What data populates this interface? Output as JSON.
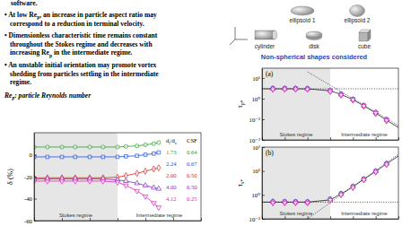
{
  "highlights": {
    "lead": "software.",
    "bullets": [
      [
        [
          "• At low Re",
          {
            "sub": "p"
          },
          ", an increase in particle aspect ratio may"
        ],
        [
          "correspond to a reduction in terminal velocity."
        ]
      ],
      [
        [
          "• Dimensionless characteristic time remains constant"
        ],
        [
          "throughout the Stokes regime and decreases with"
        ],
        [
          "increasing Re",
          {
            "sub": "p"
          },
          " in the intermediate regime."
        ]
      ],
      [
        [
          "• An unstable initial orientation may promote vortex"
        ],
        [
          "shedding from particles settling in the intermediate"
        ],
        [
          "regime."
        ]
      ]
    ],
    "note": [
      "Re",
      {
        "sub": "p"
      },
      ": particle Reynolds number"
    ]
  },
  "shapes": {
    "items": [
      "ellipsoid 1",
      "ellipsoid 2",
      "cylinder",
      "disk",
      "cube"
    ],
    "caption": "Non-spherical shapes considered"
  },
  "chart_data": [
    {
      "type": "line",
      "y_label": [
        "δ (%)"
      ],
      "log": "x",
      "xlim": [
        0.001,
        1000
      ],
      "xticks": [
        0.001,
        0.01,
        0.1,
        1,
        10,
        100,
        1000
      ],
      "ylim": [
        -60,
        20
      ],
      "yticks": [
        -60,
        -40,
        -20,
        0
      ],
      "tick_labels": "y",
      "legend": "right",
      "legend_title": [
        [
          "d",
          {
            "sub": "l"
          },
          "/d",
          {
            "sub": "s"
          }
        ],
        [
          "CSF"
        ]
      ],
      "regions": [
        {
          "label": "Stokes regime",
          "x": [
            0.001,
            1
          ],
          "color": "#e6e6e6"
        },
        {
          "label": "Intermediate regime",
          "x": [
            1,
            1000
          ]
        }
      ],
      "x": [
        0.001,
        0.003,
        0.01,
        0.03,
        0.1,
        0.3,
        1,
        2,
        5,
        10,
        20,
        30
      ],
      "series": [
        {
          "name": "1.73",
          "csf": "0.64",
          "color": "#2ca02c",
          "marker": "circle",
          "values": [
            7,
            7,
            7,
            7,
            7,
            7,
            7,
            7.5,
            8,
            9,
            10,
            11
          ]
        },
        {
          "name": "2.24",
          "csf": "0.67",
          "color": "#1f4fd8",
          "marker": "square",
          "values": [
            -2,
            -2,
            -2,
            -2,
            -2,
            -2,
            -2,
            -1.5,
            -1,
            0,
            1,
            2
          ]
        },
        {
          "name": "2.00",
          "csf": "0.50",
          "color": "#d62728",
          "marker": "diamond",
          "values": [
            -21,
            -21,
            -21,
            -21,
            -21,
            -21,
            -20.5,
            -19,
            -17,
            -15,
            -13,
            -12
          ]
        },
        {
          "name": "4.00",
          "csf": "0.50",
          "color": "#7b2fbf",
          "marker": "triangle",
          "values": [
            -22,
            -22,
            -22,
            -22,
            -22,
            -22,
            -23,
            -24,
            -26,
            -28,
            -30,
            -31
          ]
        },
        {
          "name": "4.12",
          "csf": "0.25",
          "color": "#e020c0",
          "marker": "triangle-down",
          "values": [
            -24,
            -24,
            -24,
            -24,
            -24,
            -24,
            -25,
            -28,
            -33,
            -38,
            -44,
            -48
          ]
        }
      ]
    },
    {
      "type": "scatter",
      "title": "(a)",
      "y_label": [
        "τ",
        {
          "sub": "p*"
        }
      ],
      "log": true,
      "xlim": [
        0.001,
        1000
      ],
      "xticks": [
        0.001,
        0.01,
        0.1,
        1,
        10,
        100,
        1000
      ],
      "ylim": [
        0.01,
        30
      ],
      "yticks": [
        {
          "value": 0.01,
          "label": "10⁻²"
        },
        {
          "value": 0.1,
          "label": "10⁻¹"
        },
        {
          "value": 1,
          "label": "10⁰"
        },
        {
          "value": 10,
          "label": "10¹"
        }
      ],
      "tick_labels": "y",
      "regions": [
        {
          "label": "Stokes regime",
          "x": [
            0.001,
            1
          ],
          "color": "#e6e6e6"
        },
        {
          "label": "Intermediate regime",
          "x": [
            1,
            1000
          ]
        }
      ],
      "x": [
        0.003,
        0.01,
        0.03,
        0.1,
        1,
        3,
        10,
        30,
        100,
        300
      ],
      "series": [
        {
          "type": "line",
          "line_style": "dotted",
          "color": "#000000",
          "x": [
            0.001,
            1000
          ],
          "values": [
            3,
            3
          ]
        },
        {
          "type": "line",
          "line_style": "dotted",
          "color": "#000000",
          "x": [
            0.1,
            1000
          ],
          "values": [
            20,
            0.05
          ]
        },
        {
          "type": "line",
          "line_style": "solid",
          "color": "#000000",
          "x": [
            0.001,
            0.1,
            1,
            3,
            10,
            30,
            100,
            300,
            1000
          ],
          "values": [
            3,
            3,
            2.4,
            1.6,
            0.9,
            0.45,
            0.2,
            0.09,
            0.04
          ]
        },
        {
          "color": "#2ca02c",
          "marker": "circle",
          "values": [
            3.0,
            3.0,
            3.0,
            3.0,
            2.4,
            1.6,
            0.9,
            0.45,
            0.2,
            0.09
          ]
        },
        {
          "color": "#1f4fd8",
          "marker": "square",
          "values": [
            3.2,
            3.2,
            3.2,
            3.1,
            2.5,
            1.7,
            0.95,
            0.47,
            0.21,
            0.1
          ]
        },
        {
          "color": "#d62728",
          "marker": "diamond",
          "values": [
            2.9,
            2.9,
            2.9,
            2.9,
            2.3,
            1.5,
            0.85,
            0.43,
            0.19,
            0.085
          ]
        },
        {
          "color": "#7b2fbf",
          "marker": "triangle",
          "values": [
            3.1,
            3.1,
            3.1,
            3.0,
            2.5,
            1.6,
            0.92,
            0.46,
            0.22,
            0.095
          ]
        },
        {
          "color": "#e020c0",
          "marker": "triangle-down",
          "values": [
            2.8,
            2.8,
            2.8,
            2.8,
            2.2,
            1.5,
            0.88,
            0.44,
            0.2,
            0.088
          ]
        }
      ]
    },
    {
      "type": "scatter",
      "title": "(b)",
      "y_label": [
        "τ",
        {
          "sub": "s*"
        }
      ],
      "log": true,
      "xlim": [
        0.001,
        1000
      ],
      "xticks": [
        0.001,
        0.01,
        0.1,
        1,
        10,
        100,
        1000
      ],
      "ylim": [
        0.1,
        100
      ],
      "yticks": [
        {
          "value": 0.1,
          "label": "10⁻¹"
        },
        {
          "value": 1,
          "label": "10⁰"
        },
        {
          "value": 10,
          "label": "10¹"
        },
        {
          "value": 100,
          "label": "10²"
        }
      ],
      "tick_labels": "y",
      "regions": [
        {
          "label": "Stokes regime",
          "x": [
            0.001,
            1
          ],
          "color": "#e6e6e6"
        },
        {
          "label": "Intermediate regime",
          "x": [
            1,
            1000
          ]
        }
      ],
      "x": [
        0.003,
        0.01,
        0.03,
        0.1,
        1,
        3,
        10,
        30,
        100,
        300
      ],
      "series": [
        {
          "type": "line",
          "line_style": "dotted",
          "color": "#000000",
          "x": [
            0.001,
            1000
          ],
          "values": [
            0.5,
            0.5
          ]
        },
        {
          "type": "line",
          "line_style": "dotted",
          "color": "#000000",
          "x": [
            0.1,
            1000
          ],
          "values": [
            0.1,
            50
          ]
        },
        {
          "type": "line",
          "line_style": "solid",
          "color": "#000000",
          "x": [
            0.001,
            0.1,
            1,
            3,
            10,
            30,
            100,
            300,
            1000
          ],
          "values": [
            0.5,
            0.5,
            0.62,
            1.1,
            2.2,
            4.5,
            9.5,
            20,
            42
          ]
        },
        {
          "color": "#2ca02c",
          "marker": "circle",
          "values": [
            0.5,
            0.5,
            0.5,
            0.5,
            0.65,
            1.1,
            2.2,
            4.5,
            9.5,
            20
          ]
        },
        {
          "color": "#1f4fd8",
          "marker": "square",
          "values": [
            0.53,
            0.53,
            0.53,
            0.52,
            0.68,
            1.15,
            2.3,
            4.7,
            10,
            21
          ]
        },
        {
          "color": "#d62728",
          "marker": "diamond",
          "values": [
            0.48,
            0.48,
            0.48,
            0.48,
            0.62,
            1.05,
            2.1,
            4.3,
            9.2,
            19
          ]
        },
        {
          "color": "#7b2fbf",
          "marker": "triangle",
          "values": [
            0.52,
            0.52,
            0.51,
            0.51,
            0.66,
            1.12,
            2.25,
            4.6,
            9.8,
            20.5
          ]
        },
        {
          "color": "#e020c0",
          "marker": "triangle-down",
          "values": [
            0.47,
            0.47,
            0.47,
            0.47,
            0.6,
            1.0,
            2.0,
            4.2,
            9,
            18.5
          ]
        }
      ]
    }
  ]
}
